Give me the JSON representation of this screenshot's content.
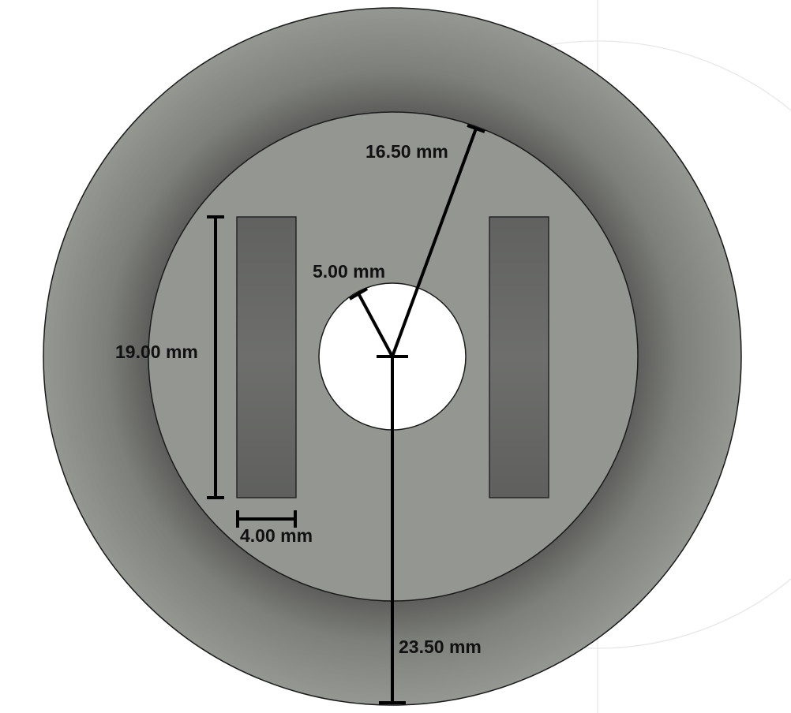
{
  "colors": {
    "background": "#ffffff",
    "outer_face": "#8f918c",
    "inner_face": "#949691",
    "slot_fill": "#6a6b68",
    "hole_fill": "#ffffff",
    "edge": "#1a1a1a",
    "dimension": "#000000",
    "construction_line": "#e4e4e4"
  },
  "dimensions": {
    "inner_radius": "16.50 mm",
    "hole_radius": "5.00 mm",
    "slot_length": "19.00 mm",
    "slot_width": "4.00 mm",
    "outer_radius": "23.50 mm"
  }
}
